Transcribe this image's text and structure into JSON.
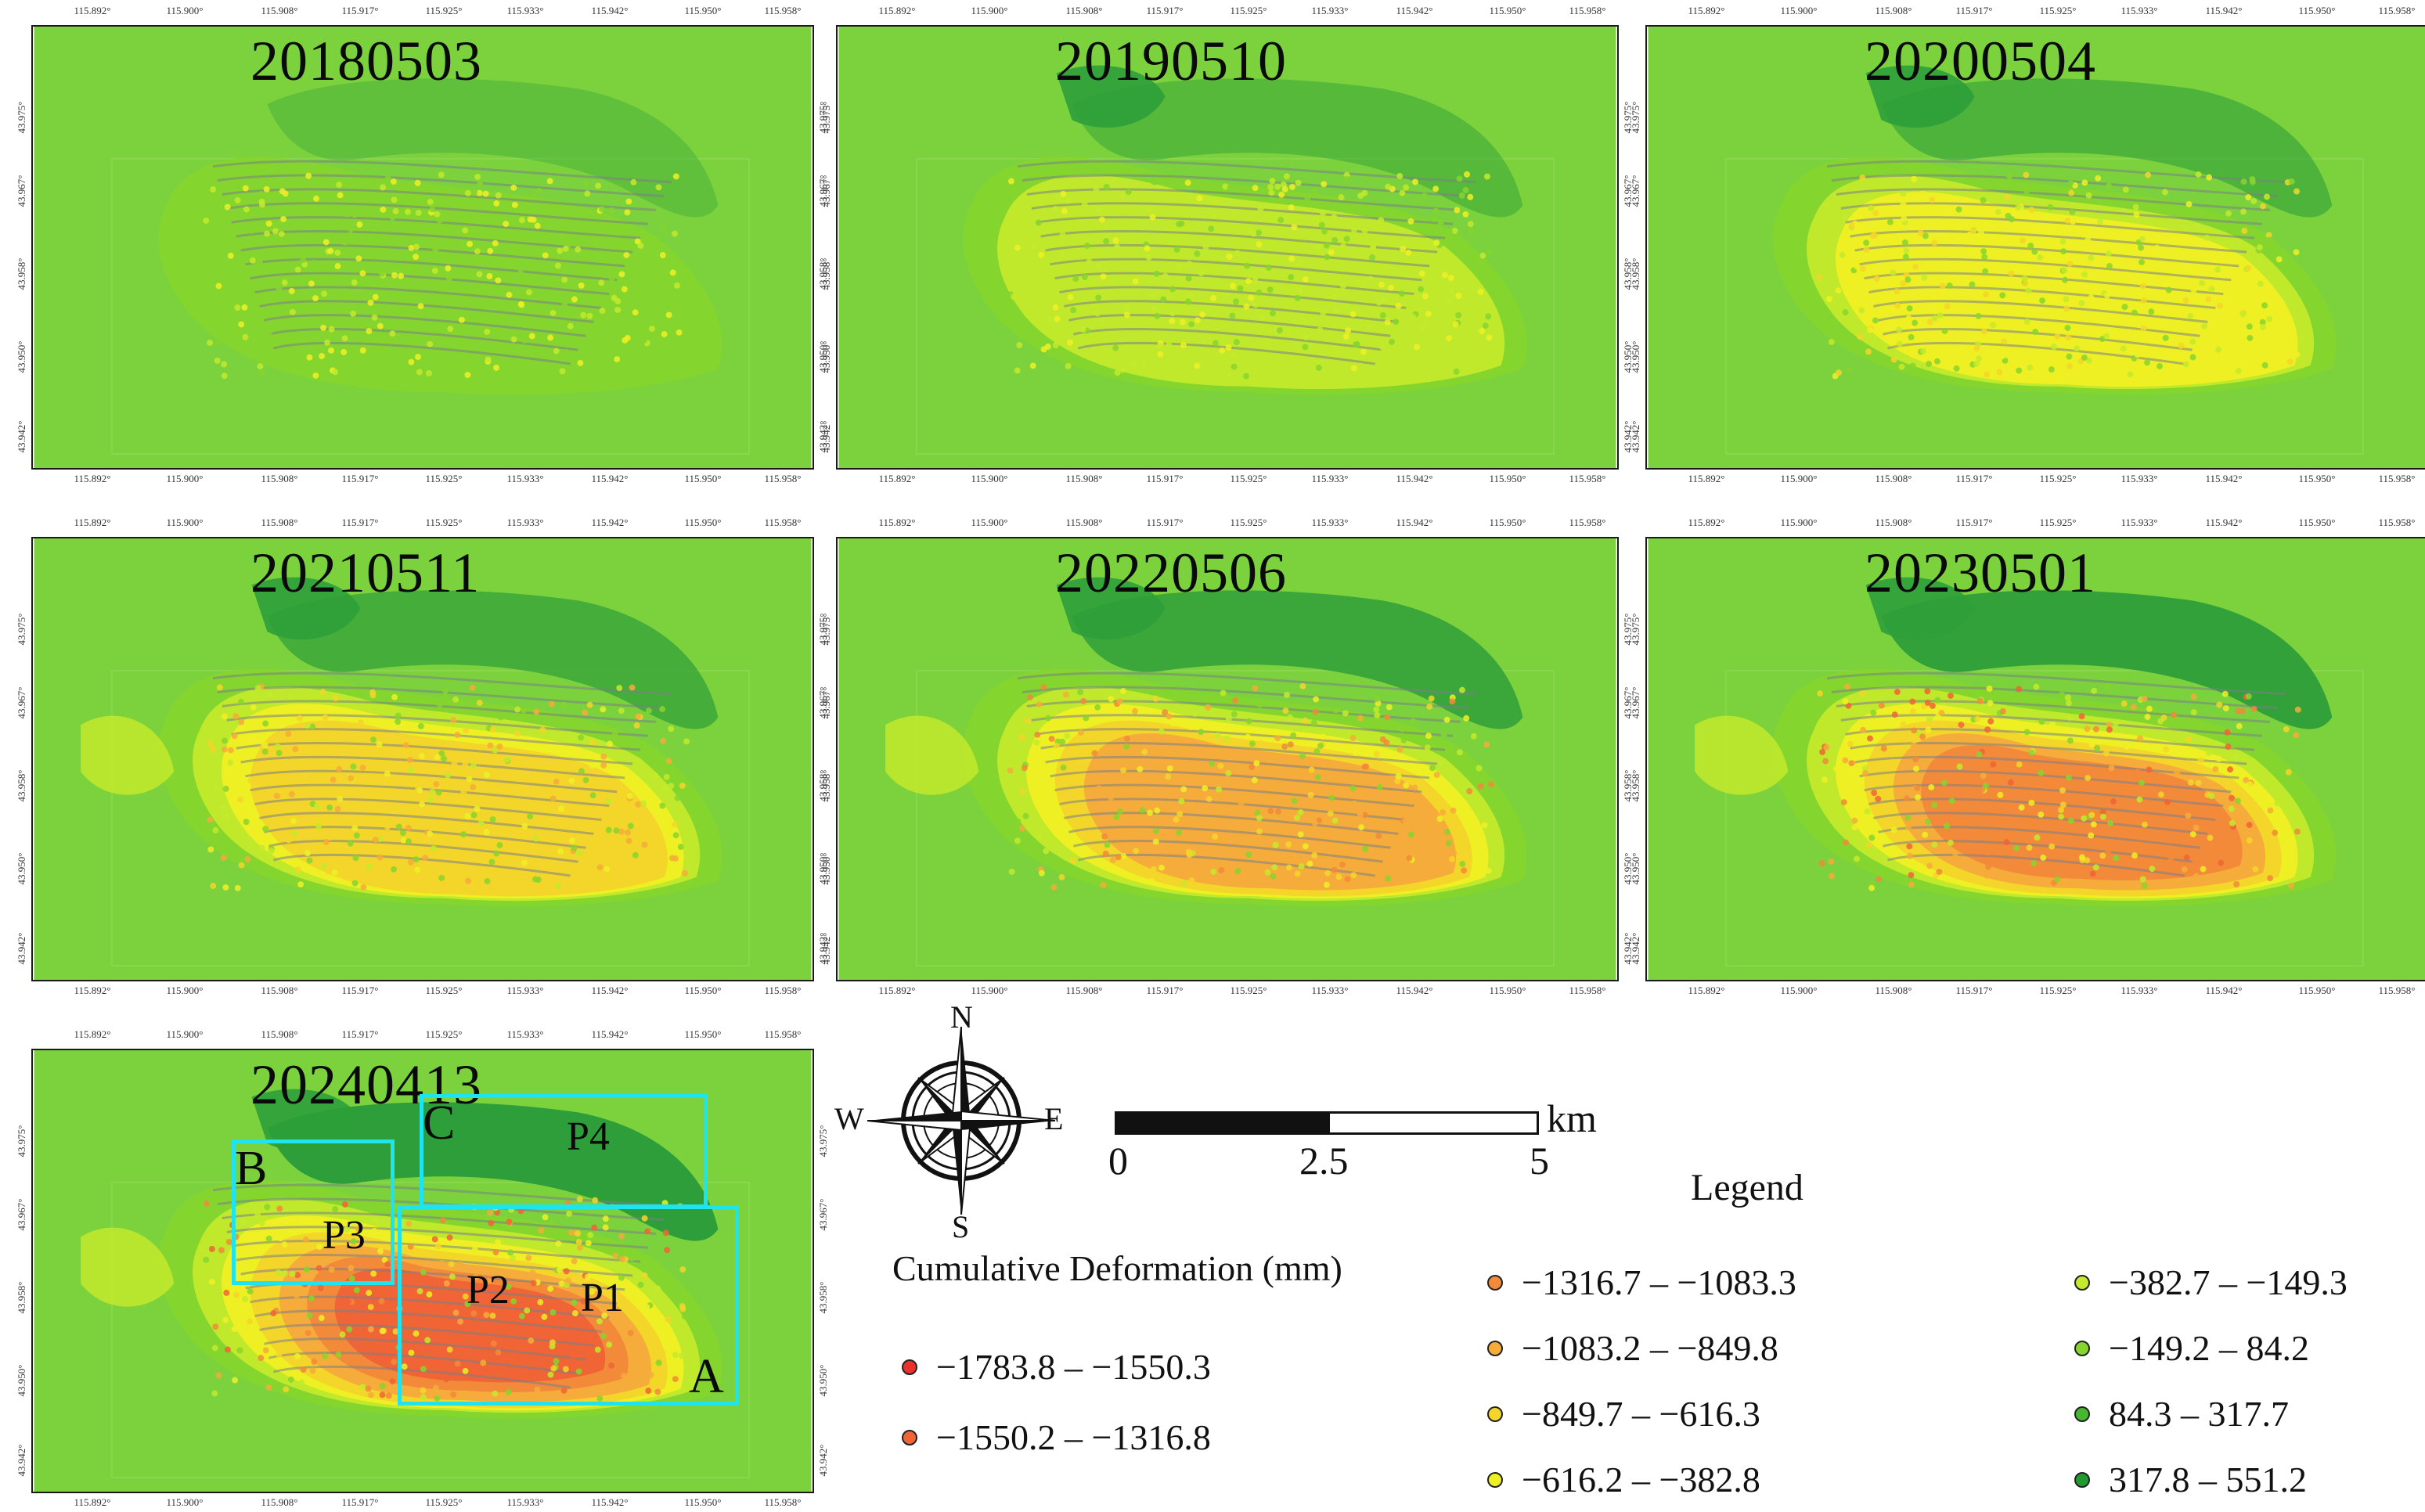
{
  "maps": [
    {
      "date": "20180503",
      "stage": 0
    },
    {
      "date": "20190510",
      "stage": 1
    },
    {
      "date": "20200504",
      "stage": 2
    },
    {
      "date": "20210511",
      "stage": 3
    },
    {
      "date": "20220506",
      "stage": 4
    },
    {
      "date": "20230501",
      "stage": 5
    },
    {
      "date": "20240413",
      "stage": 6
    }
  ],
  "lon_ticks": [
    "115.892°",
    "115.900°",
    "115.908°",
    "115.917°",
    "115.925°",
    "115.933°",
    "115.942°",
    "115.950°",
    "115.958°"
  ],
  "lat_ticks": [
    "43.975°",
    "43.967°",
    "43.958°",
    "43.950°",
    "43.942°"
  ],
  "regions": {
    "A": {
      "label": "A"
    },
    "B": {
      "label": "B"
    },
    "C": {
      "label": "C"
    }
  },
  "points": [
    "P1",
    "P2",
    "P3",
    "P4"
  ],
  "compass": {
    "n": "N",
    "s": "S",
    "e": "E",
    "w": "W"
  },
  "scale_bar": {
    "ticks": [
      "0",
      "2.5",
      "5"
    ],
    "unit": "km"
  },
  "legend": {
    "title": "Legend",
    "subtitle": "Cumulative Deformation (mm)",
    "classes": [
      {
        "label": "−1783.8 – −1550.3",
        "color": "#e8322a"
      },
      {
        "label": "−1550.2 – −1316.8",
        "color": "#f06436"
      },
      {
        "label": "−1316.7 – −1083.3",
        "color": "#f28a3a"
      },
      {
        "label": "−1083.2 – −849.8",
        "color": "#f6ac3a"
      },
      {
        "label": "−849.7 – −616.3",
        "color": "#f4d52a"
      },
      {
        "label": "−616.2 – −382.8",
        "color": "#eef024"
      },
      {
        "label": "−382.7 – −149.3",
        "color": "#c3ea2c"
      },
      {
        "label": "−149.2 – 84.2",
        "color": "#86d52e"
      },
      {
        "label": "84.3 – 317.7",
        "color": "#47b82e"
      },
      {
        "label": "317.8 – 551.2",
        "color": "#1f9a2e"
      }
    ]
  },
  "colors": {
    "background_green": "#7bd23c",
    "dark_green": "#2e9e3a",
    "region_box": "#1fe3ee"
  }
}
